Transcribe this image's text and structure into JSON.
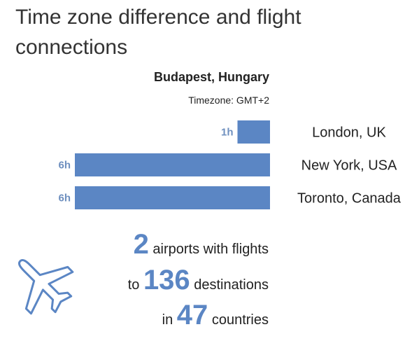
{
  "chart_data": {
    "type": "bar",
    "orientation": "horizontal",
    "title": [
      "Time zone difference and flight",
      "connections"
    ],
    "subtitle": "Budapest, Hungary",
    "note": "Timezone: GMT+2",
    "categories": [
      "London, UK",
      "New York, USA",
      "Toronto, Canada"
    ],
    "values": [
      1,
      6,
      6
    ],
    "value_labels": [
      "1h",
      "6h",
      "6h"
    ],
    "color": "#5b86c4"
  },
  "stats": [
    {
      "number": "2",
      "text": "airports with flights"
    },
    {
      "prefix": "to",
      "number": "136",
      "text": "destinations"
    },
    {
      "prefix": "in",
      "number": "47",
      "text": "countries"
    }
  ]
}
